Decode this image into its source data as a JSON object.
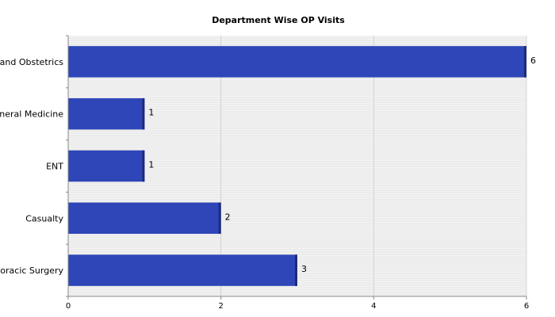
{
  "chart_data": {
    "type": "bar",
    "orientation": "horizontal",
    "title": "Department Wise OP Visits",
    "xlabel": "",
    "ylabel": "",
    "categories": [
      "y and Obstetrics",
      "eneral Medicine",
      "ENT",
      "Casualty",
      "horacic Surgery"
    ],
    "values": [
      6,
      1,
      1,
      2,
      3
    ],
    "value_labels": [
      "6",
      "1",
      "1",
      "2",
      "3"
    ],
    "xlim": [
      0,
      6
    ],
    "x_ticks": [
      0,
      2,
      4,
      6
    ],
    "x_tick_labels": [
      "0",
      "2",
      "4",
      "6"
    ],
    "grid": true,
    "legend": "none",
    "colors": {
      "bar": "#2E46B8",
      "bar_edge": "#1C2B7A",
      "plot_background": "#F2F2F2",
      "grid_line": "#DADADA",
      "axis": "#888888"
    }
  }
}
